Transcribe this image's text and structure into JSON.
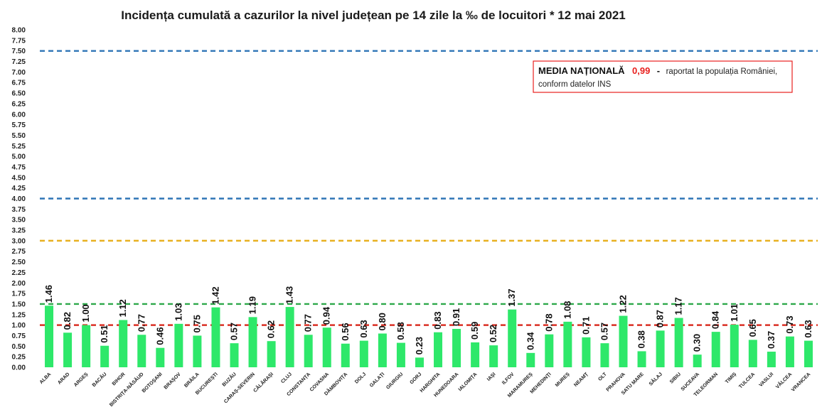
{
  "chart_data": {
    "type": "bar",
    "title": "Incidența cumulată a cazurilor la nivel județean pe 14 zile la ‰ de locuitori *  12 mai 2021",
    "categories": [
      "ALBA",
      "ARAD",
      "ARGEȘ",
      "BACĂU",
      "BIHOR",
      "BISTRIȚA-NĂSĂUD",
      "BOTOȘANI",
      "BRAȘOV",
      "BRĂILA",
      "BUCUREȘTI",
      "BUZĂU",
      "CARAȘ-SEVERIN",
      "CĂLĂRAȘI",
      "CLUJ",
      "CONSTANȚA",
      "COVASNA",
      "DÂMBOVIȚA",
      "DOLJ",
      "GALAȚI",
      "GIURGIU",
      "GORJ",
      "HARGHITA",
      "HUNEDOARA",
      "IALOMIȚA",
      "IAȘI",
      "ILFOV",
      "MARAMUREȘ",
      "MEHEDINȚI",
      "MUREȘ",
      "NEAMȚ",
      "OLT",
      "PRAHOVA",
      "SATU MARE",
      "SĂLAJ",
      "SIBIU",
      "SUCEAVA",
      "TELEORMAN",
      "TIMIȘ",
      "TULCEA",
      "VASLUI",
      "VÂLCEA",
      "VRANCEA"
    ],
    "values": [
      1.46,
      0.82,
      1.0,
      0.51,
      1.12,
      0.77,
      0.46,
      1.03,
      0.75,
      1.42,
      0.57,
      1.19,
      0.62,
      1.43,
      0.77,
      0.94,
      0.56,
      0.63,
      0.8,
      0.58,
      0.23,
      0.83,
      0.91,
      0.59,
      0.52,
      1.37,
      0.34,
      0.78,
      1.08,
      0.71,
      0.57,
      1.22,
      0.38,
      0.87,
      1.17,
      0.3,
      0.84,
      1.01,
      0.65,
      0.37,
      0.73,
      0.63
    ],
    "value_labels": [
      "1.46",
      "0.82",
      "1.00",
      "0.51",
      "1.12",
      "0.77",
      "0.46",
      "1.03",
      "0.75",
      "1.42",
      "0.57",
      "1.19",
      "0.62",
      "1.43",
      "0.77",
      "0.94",
      "0.56",
      "0.63",
      "0.80",
      "0.58",
      "0.23",
      "0.83",
      "0.91",
      "0.59",
      "0.52",
      "1.37",
      "0.34",
      "0.78",
      "1.08",
      "0.71",
      "0.57",
      "1.22",
      "0.38",
      "0.87",
      "1.17",
      "0.30",
      "0.84",
      "1.01",
      "0.65",
      "0.37",
      "0.73",
      "0.63"
    ],
    "ylim": [
      0,
      8
    ],
    "yticks": [
      "0.00",
      "0.25",
      "0.50",
      "0.75",
      "1.00",
      "1.25",
      "1.50",
      "1.75",
      "2.00",
      "2.25",
      "2.50",
      "2.75",
      "3.00",
      "3.25",
      "3.50",
      "3.75",
      "4.00",
      "4.25",
      "4.50",
      "4.75",
      "5.00",
      "5.25",
      "5.50",
      "5.75",
      "6.00",
      "6.25",
      "6.50",
      "6.75",
      "7.00",
      "7.25",
      "7.50",
      "7.75",
      "8.00"
    ],
    "grid": false,
    "bar_color": "#2ee86a",
    "reference_lines": [
      {
        "value": 7.5,
        "color": "#2e75b6"
      },
      {
        "value": 4.0,
        "color": "#2e75b6"
      },
      {
        "value": 3.0,
        "color": "#e8b020"
      },
      {
        "value": 1.5,
        "color": "#2ea84a"
      },
      {
        "value": 1.0,
        "color": "#d93025"
      }
    ],
    "note": {
      "bold": "MEDIA NAȚIONALĂ",
      "value": "0,99",
      "dash": "-",
      "line1": "raportat la populația României,",
      "line2": "conform datelor INS",
      "border_color": "#e8201e"
    }
  }
}
